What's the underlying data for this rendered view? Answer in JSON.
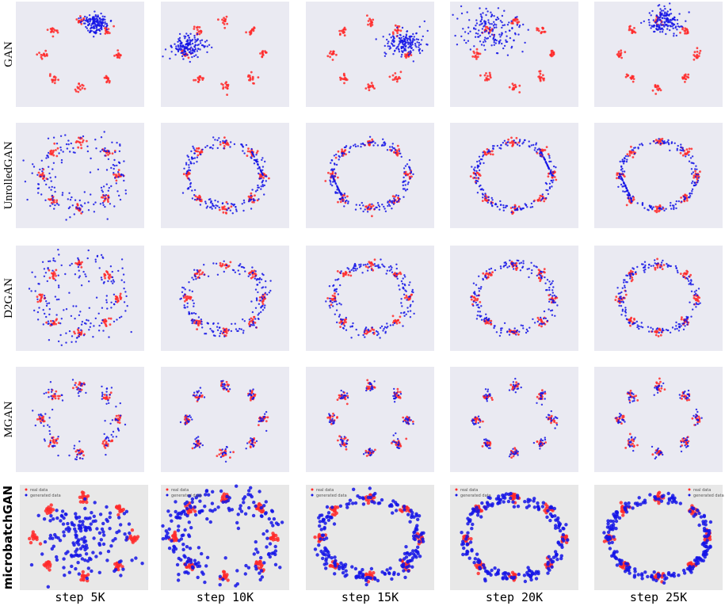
{
  "row_labels": [
    "GAN",
    "UnrolledGAN",
    "D2GAN",
    "MGAN",
    "microbatchGAN"
  ],
  "column_labels": [
    "step 5K",
    "step 10K",
    "step 15K",
    "step 20K",
    "step 25K"
  ],
  "legend_labels": [
    "real data",
    "generated data"
  ]
}
